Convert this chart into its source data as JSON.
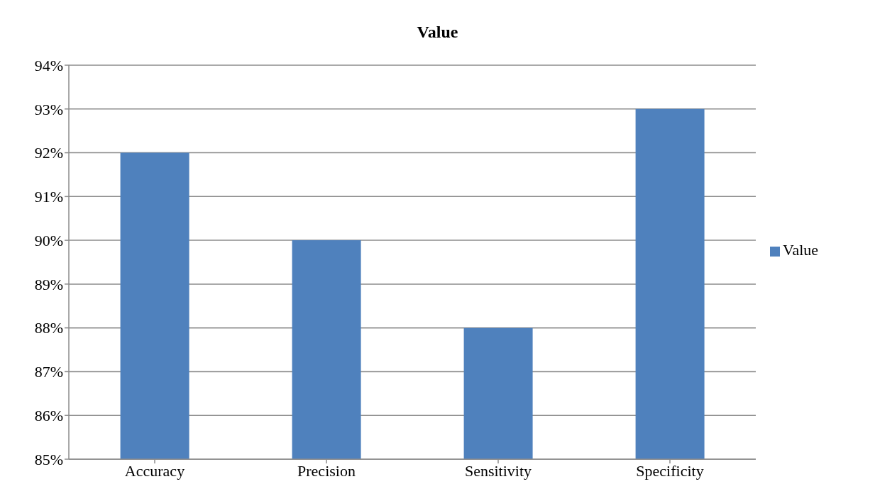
{
  "chart_data": {
    "type": "bar",
    "title": "Value",
    "categories": [
      "Accuracy",
      "Precision",
      "Sensitivity",
      "Specificity"
    ],
    "series": [
      {
        "name": "Value",
        "color": "#4f81bd",
        "values": [
          92,
          90,
          88,
          93
        ]
      }
    ],
    "ylim": [
      85,
      94
    ],
    "yticks": [
      {
        "value": 85,
        "label": "85%"
      },
      {
        "value": 86,
        "label": "86%"
      },
      {
        "value": 87,
        "label": "87%"
      },
      {
        "value": 88,
        "label": "88%"
      },
      {
        "value": 89,
        "label": "89%"
      },
      {
        "value": 90,
        "label": "90%"
      },
      {
        "value": 91,
        "label": "91%"
      },
      {
        "value": 92,
        "label": "92%"
      },
      {
        "value": 93,
        "label": "93%"
      },
      {
        "value": 94,
        "label": "94%"
      }
    ],
    "grid": "y",
    "legend": "right"
  }
}
